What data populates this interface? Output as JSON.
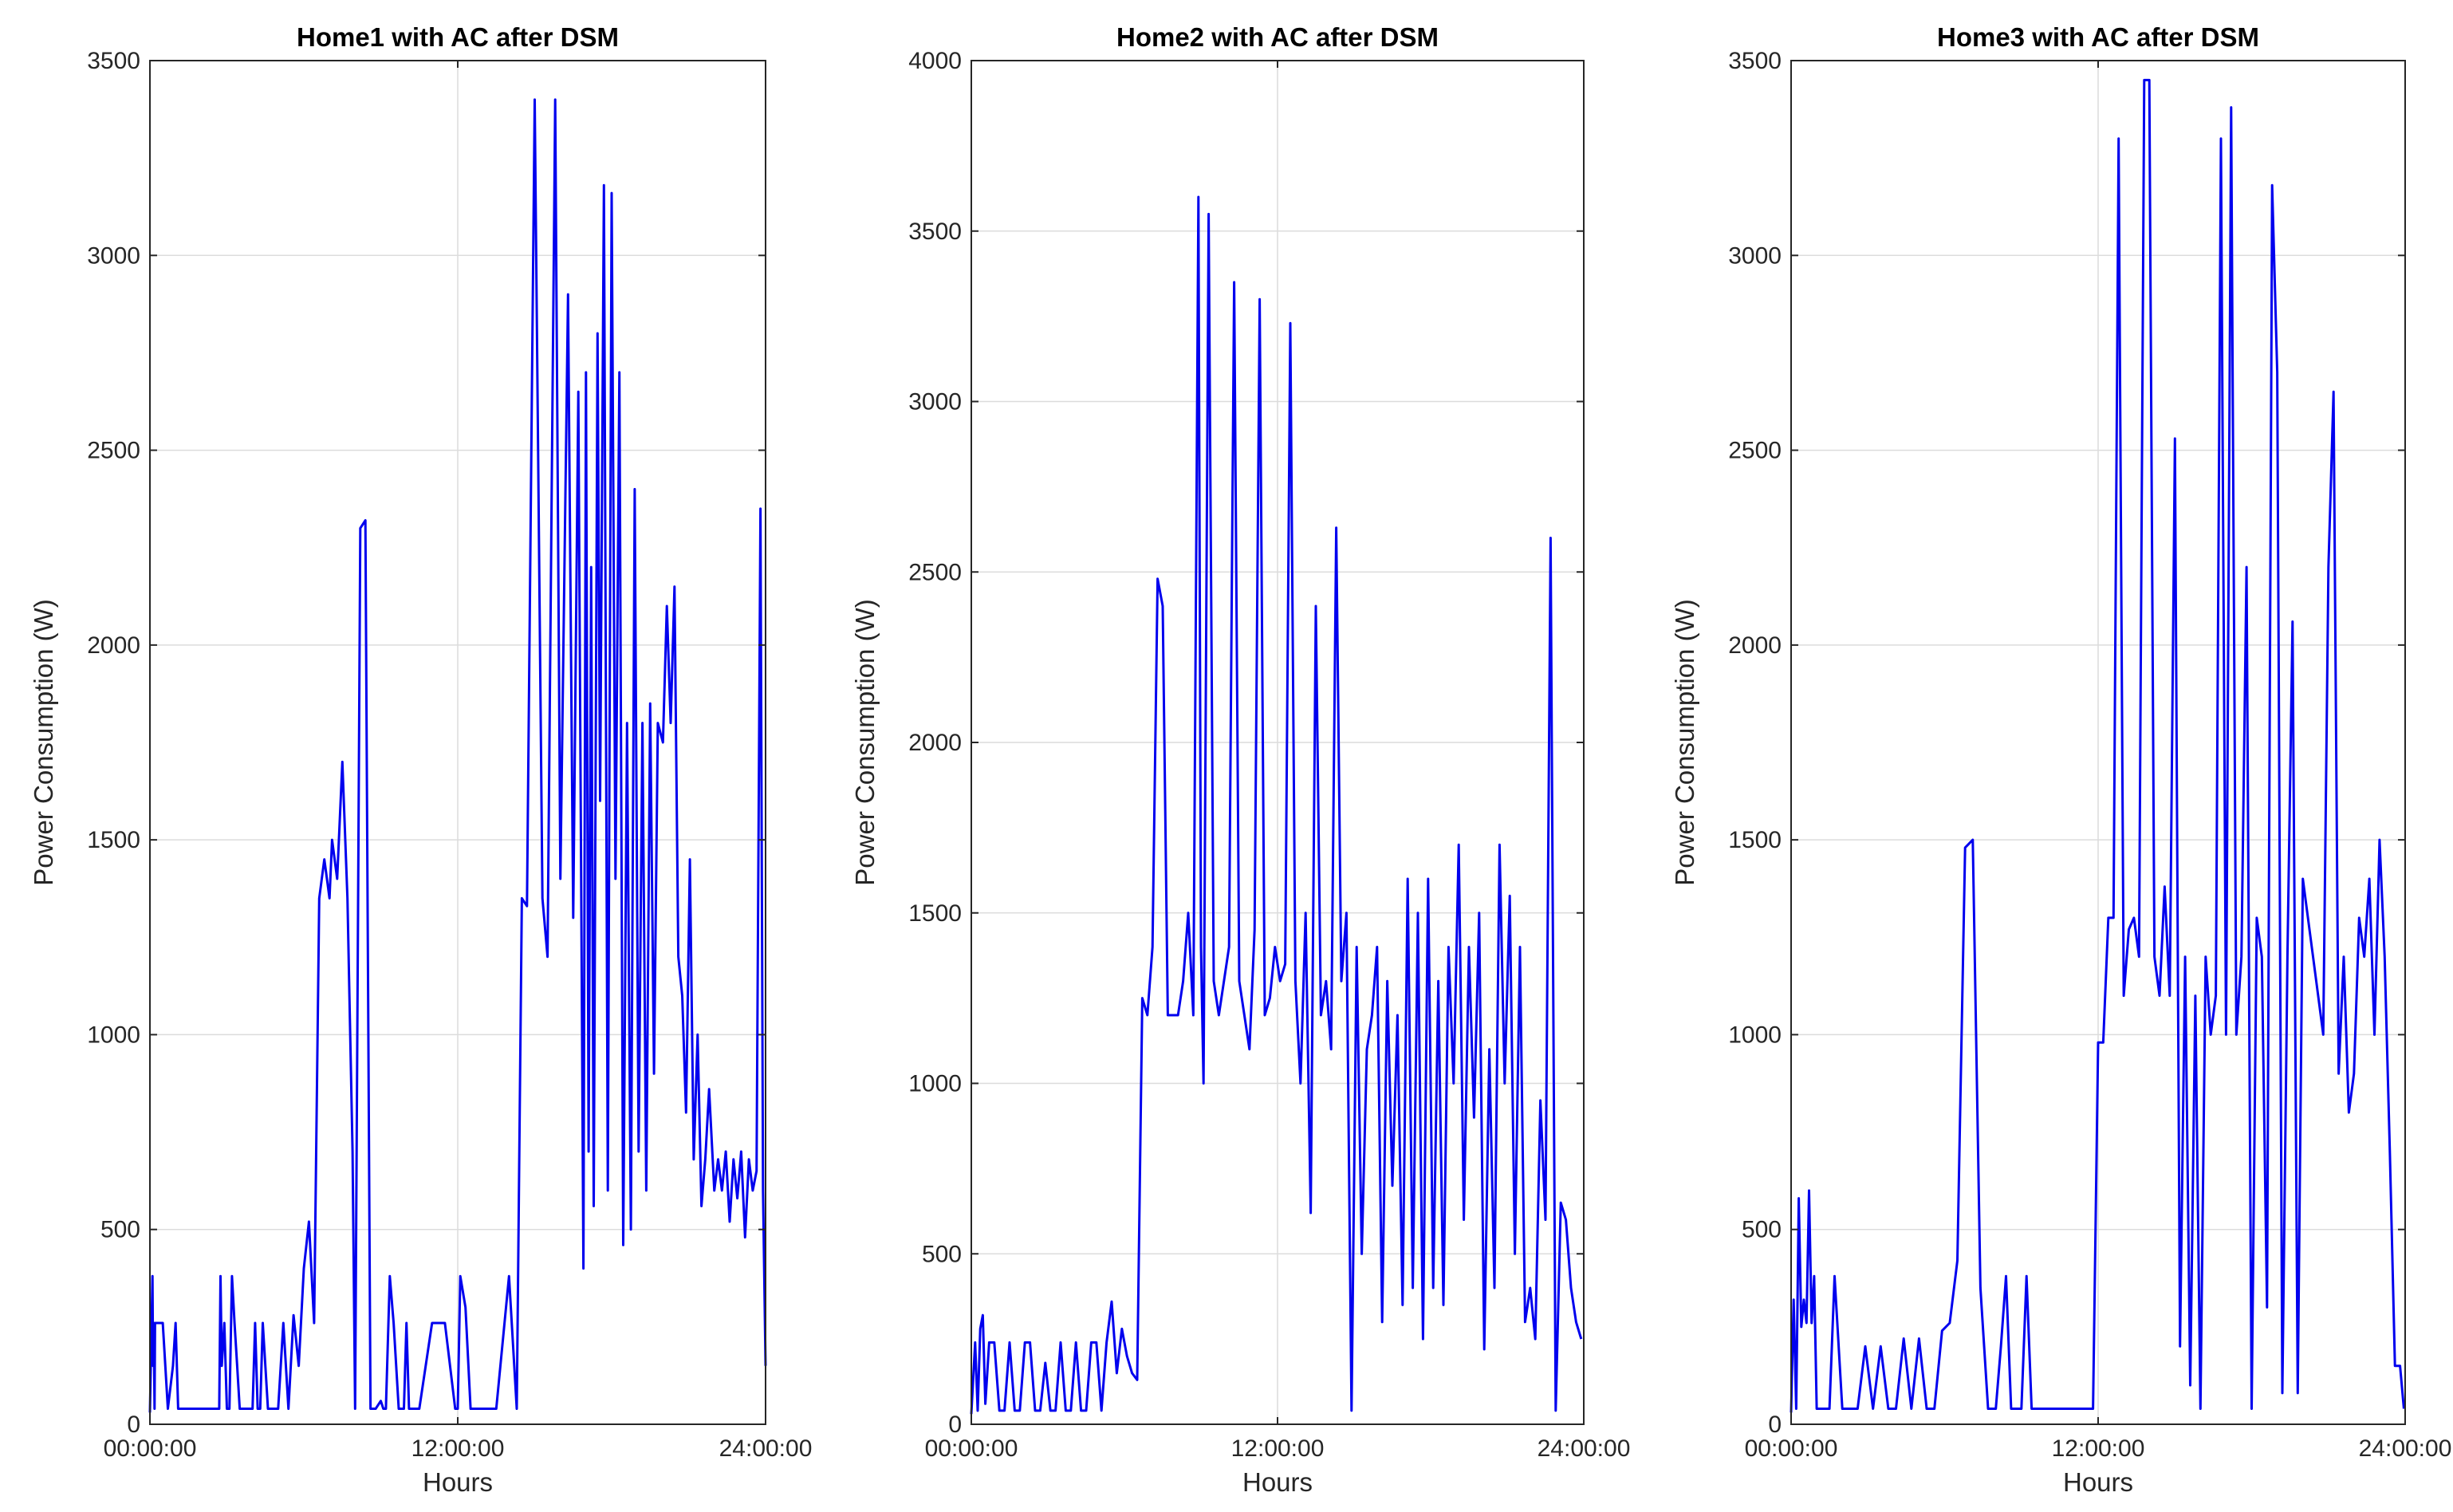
{
  "chart_data": [
    {
      "type": "line",
      "title": "Home1 with AC after DSM",
      "xlabel": "Hours",
      "ylabel": "Power Consumption (W)",
      "xlim": [
        0,
        24
      ],
      "ylim": [
        0,
        3500
      ],
      "x_ticks": [
        0,
        12,
        24
      ],
      "x_tick_labels": [
        "00:00:00",
        "12:00:00",
        "24:00:00"
      ],
      "y_ticks": [
        0,
        500,
        1000,
        1500,
        2000,
        2500,
        3000,
        3500
      ],
      "y_tick_labels": [
        "0",
        "500",
        "1000",
        "1500",
        "2000",
        "2500",
        "3000",
        "3500"
      ],
      "grid": true,
      "color": "#0000ee",
      "series": [
        {
          "x": [
            0,
            0.1,
            0.12,
            0.15,
            0.18,
            0.2,
            0.5,
            0.7,
            0.9,
            1.0,
            1.1,
            2.7,
            2.75,
            2.8,
            2.9,
            3.0,
            3.1,
            3.2,
            3.3,
            3.4,
            3.5,
            4.0,
            4.1,
            4.2,
            4.3,
            4.4,
            4.6,
            5.0,
            5.2,
            5.4,
            5.6,
            5.8,
            6.0,
            6.2,
            6.4,
            6.6,
            6.8,
            7.0,
            7.1,
            7.3,
            7.5,
            7.7,
            7.9,
            8.0,
            8.2,
            8.4,
            8.6,
            8.8,
            9.0,
            9.1,
            9.2,
            9.35,
            9.5,
            9.7,
            9.9,
            10.0,
            10.1,
            10.5,
            11.0,
            11.5,
            11.9,
            12.0,
            12.1,
            12.3,
            12.5,
            13.0,
            13.5,
            14.0,
            14.3,
            14.5,
            14.7,
            15.0,
            15.3,
            15.5,
            15.8,
            16.0,
            16.3,
            16.5,
            16.7,
            16.9,
            17.0,
            17.1,
            17.2,
            17.3,
            17.45,
            17.55,
            17.7,
            17.85,
            18.0,
            18.15,
            18.3,
            18.45,
            18.6,
            18.75,
            18.9,
            19.05,
            19.2,
            19.35,
            19.5,
            19.65,
            19.8,
            20.0,
            20.15,
            20.3,
            20.45,
            20.6,
            20.75,
            20.9,
            21.05,
            21.2,
            21.35,
            21.5,
            21.65,
            21.8,
            22.0,
            22.15,
            22.3,
            22.45,
            22.6,
            22.75,
            22.9,
            23.05,
            23.2,
            23.35,
            23.5,
            23.65,
            23.8,
            23.9,
            24.0
          ],
          "values": [
            30,
            380,
            150,
            260,
            40,
            260,
            260,
            40,
            150,
            260,
            40,
            40,
            380,
            150,
            260,
            40,
            40,
            380,
            260,
            150,
            40,
            40,
            260,
            40,
            40,
            260,
            40,
            40,
            260,
            40,
            280,
            150,
            400,
            520,
            260,
            1350,
            1450,
            1350,
            1500,
            1400,
            1700,
            1350,
            700,
            40,
            2300,
            2320,
            40,
            40,
            60,
            40,
            40,
            380,
            260,
            40,
            40,
            260,
            40,
            40,
            260,
            260,
            40,
            40,
            380,
            300,
            40,
            40,
            40,
            380,
            40,
            1350,
            1330,
            3400,
            1350,
            1200,
            3400,
            1400,
            2900,
            1300,
            2650,
            400,
            2700,
            700,
            2200,
            560,
            2800,
            1600,
            3180,
            600,
            3160,
            1400,
            2700,
            460,
            1800,
            500,
            2400,
            700,
            1800,
            600,
            1850,
            900,
            1800,
            1750,
            2100,
            1800,
            2150,
            1200,
            1100,
            800,
            1450,
            680,
            1000,
            560,
            680,
            860,
            600,
            680,
            600,
            700,
            520,
            680,
            580,
            700,
            480,
            680,
            600,
            650,
            2350,
            600,
            150
          ],
          "note": ""
        }
      ]
    },
    {
      "type": "line",
      "title": "Home2 with AC after DSM",
      "xlabel": "Hours",
      "ylabel": "Power Consumption (W)",
      "xlim": [
        0,
        24
      ],
      "ylim": [
        0,
        4000
      ],
      "x_ticks": [
        0,
        12,
        24
      ],
      "x_tick_labels": [
        "00:00:00",
        "12:00:00",
        "24:00:00"
      ],
      "y_ticks": [
        0,
        500,
        1000,
        1500,
        2000,
        2500,
        3000,
        3500,
        4000
      ],
      "y_tick_labels": [
        "0",
        "500",
        "1000",
        "1500",
        "2000",
        "2500",
        "3000",
        "3500",
        "4000"
      ],
      "grid": true,
      "color": "#0000ee",
      "series": [
        {
          "x": [
            0,
            0.15,
            0.25,
            0.35,
            0.45,
            0.55,
            0.7,
            0.9,
            1.1,
            1.3,
            1.5,
            1.7,
            1.9,
            2.1,
            2.3,
            2.5,
            2.7,
            2.9,
            3.1,
            3.3,
            3.5,
            3.7,
            3.9,
            4.1,
            4.3,
            4.5,
            4.7,
            4.9,
            5.1,
            5.3,
            5.5,
            5.7,
            5.9,
            6.1,
            6.3,
            6.5,
            6.7,
            6.9,
            7.1,
            7.3,
            7.5,
            7.7,
            7.9,
            8.1,
            8.3,
            8.5,
            8.7,
            8.9,
            9.0,
            9.1,
            9.3,
            9.5,
            9.7,
            9.9,
            10.1,
            10.3,
            10.5,
            10.7,
            10.9,
            11.1,
            11.3,
            11.5,
            11.7,
            11.9,
            12.1,
            12.3,
            12.5,
            12.7,
            12.9,
            13.1,
            13.3,
            13.5,
            13.7,
            13.9,
            14.1,
            14.3,
            14.5,
            14.7,
            14.9,
            15.1,
            15.3,
            15.5,
            15.7,
            15.9,
            16.1,
            16.3,
            16.5,
            16.7,
            16.9,
            17.1,
            17.3,
            17.5,
            17.7,
            17.9,
            18.1,
            18.3,
            18.5,
            18.7,
            18.9,
            19.1,
            19.3,
            19.5,
            19.7,
            19.9,
            20.1,
            20.3,
            20.5,
            20.7,
            20.9,
            21.1,
            21.3,
            21.5,
            21.7,
            21.9,
            22.1,
            22.3,
            22.5,
            22.7,
            22.9,
            23.1,
            23.3,
            23.5,
            23.7,
            23.9
          ],
          "values": [
            30,
            240,
            40,
            280,
            320,
            60,
            240,
            240,
            40,
            40,
            240,
            40,
            40,
            240,
            240,
            40,
            40,
            180,
            40,
            40,
            240,
            40,
            40,
            240,
            40,
            40,
            240,
            240,
            40,
            240,
            360,
            150,
            280,
            200,
            150,
            130,
            1250,
            1200,
            1400,
            2480,
            2400,
            1200,
            1200,
            1200,
            1300,
            1500,
            1200,
            3600,
            1400,
            1000,
            3550,
            1300,
            1200,
            1300,
            1400,
            3350,
            1300,
            1200,
            1100,
            1450,
            3300,
            1200,
            1250,
            1400,
            1300,
            1350,
            3230,
            1300,
            1000,
            1500,
            620,
            2400,
            1200,
            1300,
            1100,
            2630,
            1300,
            1500,
            40,
            1400,
            500,
            1100,
            1200,
            1400,
            300,
            1300,
            700,
            1200,
            350,
            1600,
            400,
            1500,
            250,
            1600,
            400,
            1300,
            350,
            1400,
            1000,
            1700,
            600,
            1400,
            900,
            1500,
            220,
            1100,
            400,
            1700,
            1000,
            1550,
            500,
            1400,
            300,
            400,
            250,
            950,
            600,
            2600,
            40,
            650,
            600,
            400,
            300,
            250
          ],
          "note": ""
        }
      ]
    },
    {
      "type": "line",
      "title": "Home3 with AC after DSM",
      "xlabel": "Hours",
      "ylabel": "Power Consumption (W)",
      "xlim": [
        0,
        24
      ],
      "ylim": [
        0,
        3500
      ],
      "x_ticks": [
        0,
        12,
        24
      ],
      "x_tick_labels": [
        "00:00:00",
        "12:00:00",
        "24:00:00"
      ],
      "y_ticks": [
        0,
        500,
        1000,
        1500,
        2000,
        2500,
        3000,
        3500
      ],
      "y_tick_labels": [
        "0",
        "500",
        "1000",
        "1500",
        "2000",
        "2500",
        "3000",
        "3500"
      ],
      "grid": true,
      "color": "#0000ee",
      "series": [
        {
          "x": [
            0,
            0.1,
            0.2,
            0.3,
            0.4,
            0.5,
            0.6,
            0.7,
            0.8,
            0.9,
            1.0,
            1.1,
            1.3,
            1.5,
            1.7,
            2.0,
            2.3,
            2.6,
            2.9,
            3.2,
            3.5,
            3.8,
            4.1,
            4.4,
            4.7,
            5.0,
            5.3,
            5.6,
            5.9,
            6.2,
            6.5,
            6.8,
            7.1,
            7.4,
            7.7,
            8.0,
            8.2,
            8.4,
            8.6,
            8.8,
            9.0,
            9.2,
            9.4,
            9.6,
            9.8,
            10.0,
            10.3,
            10.6,
            10.9,
            11.2,
            11.5,
            11.8,
            12.0,
            12.2,
            12.4,
            12.6,
            12.8,
            13.0,
            13.2,
            13.4,
            13.6,
            13.8,
            14.0,
            14.2,
            14.4,
            14.6,
            14.8,
            15.0,
            15.2,
            15.4,
            15.6,
            15.8,
            16.0,
            16.2,
            16.4,
            16.6,
            16.8,
            17.0,
            17.2,
            17.4,
            17.6,
            17.8,
            18.0,
            18.2,
            18.4,
            18.6,
            18.8,
            19.0,
            19.2,
            19.4,
            19.6,
            19.8,
            20.0,
            20.2,
            20.4,
            20.6,
            20.8,
            21.0,
            21.2,
            21.4,
            21.6,
            21.8,
            22.0,
            22.2,
            22.4,
            22.6,
            22.8,
            23.0,
            23.2,
            23.4,
            23.6,
            23.8,
            23.95
          ],
          "values": [
            30,
            320,
            40,
            580,
            250,
            320,
            260,
            600,
            260,
            380,
            40,
            40,
            40,
            40,
            380,
            40,
            40,
            40,
            200,
            40,
            200,
            40,
            40,
            220,
            40,
            220,
            40,
            40,
            240,
            260,
            420,
            1480,
            1500,
            350,
            40,
            40,
            200,
            380,
            40,
            40,
            40,
            380,
            40,
            40,
            40,
            40,
            40,
            40,
            40,
            40,
            40,
            40,
            980,
            980,
            1300,
            1300,
            3300,
            1100,
            1270,
            1300,
            1200,
            3450,
            3450,
            1200,
            1100,
            1380,
            1100,
            2530,
            200,
            1200,
            100,
            1100,
            40,
            1200,
            1000,
            1100,
            3300,
            1000,
            3380,
            1000,
            1200,
            2200,
            40,
            1300,
            1200,
            300,
            3180,
            2700,
            80,
            1200,
            2060,
            80,
            1400,
            1300,
            1200,
            1100,
            1000,
            2200,
            2650,
            900,
            1200,
            800,
            900,
            1300,
            1200,
            1400,
            1000,
            1500,
            1200,
            700,
            150,
            150,
            40
          ],
          "note": ""
        }
      ]
    }
  ]
}
